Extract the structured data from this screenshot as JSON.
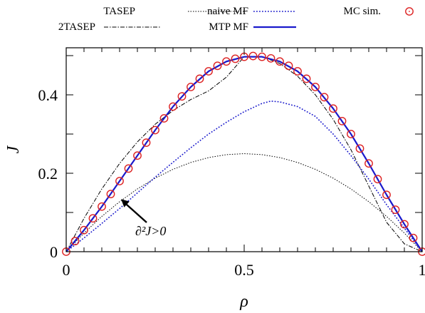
{
  "chart_data": {
    "type": "line",
    "xlabel": "ρ",
    "ylabel": "J",
    "xlim": [
      0,
      1
    ],
    "ylim": [
      0,
      0.52
    ],
    "xticks": [
      {
        "value": 0,
        "label": "0"
      },
      {
        "value": 0.5,
        "label": "0.5"
      },
      {
        "value": 1,
        "label": "1"
      }
    ],
    "yticks": [
      {
        "value": 0,
        "label": "0"
      },
      {
        "value": 0.2,
        "label": "0.2"
      },
      {
        "value": 0.4,
        "label": "0.4"
      }
    ],
    "grid": false,
    "legend_position": "top (outside plot)",
    "annotation": {
      "text": "∂²J>0",
      "x": 0.15,
      "y": 0.145
    },
    "series": [
      {
        "name": "TASEP",
        "style": "dotted",
        "color": "#000000",
        "x": [
          0,
          0.05,
          0.1,
          0.15,
          0.2,
          0.25,
          0.3,
          0.35,
          0.4,
          0.45,
          0.5,
          0.55,
          0.6,
          0.65,
          0.7,
          0.75,
          0.8,
          0.85,
          0.9,
          0.95,
          1
        ],
        "y": [
          0,
          0.0475,
          0.09,
          0.1275,
          0.16,
          0.1875,
          0.21,
          0.2275,
          0.24,
          0.2475,
          0.25,
          0.2475,
          0.24,
          0.2275,
          0.21,
          0.1875,
          0.16,
          0.1275,
          0.09,
          0.0475,
          0
        ]
      },
      {
        "name": "2TASEP",
        "style": "dash-dot",
        "color": "#000000",
        "x": [
          0,
          0.05,
          0.1,
          0.15,
          0.2,
          0.25,
          0.3,
          0.35,
          0.4,
          0.45,
          0.5,
          0.55,
          0.6,
          0.65,
          0.7,
          0.75,
          0.8,
          0.85,
          0.9,
          0.95,
          1
        ],
        "y": [
          0,
          0.085,
          0.16,
          0.225,
          0.28,
          0.325,
          0.36,
          0.388,
          0.41,
          0.445,
          0.497,
          0.4975,
          0.48,
          0.4475,
          0.4,
          0.3375,
          0.26,
          0.1675,
          0.075,
          0.02,
          0
        ]
      },
      {
        "name": "naive MF",
        "style": "dotted",
        "color": "#1a1acc",
        "x": [
          0,
          0.05,
          0.1,
          0.15,
          0.2,
          0.25,
          0.3,
          0.35,
          0.4,
          0.45,
          0.5,
          0.55,
          0.575,
          0.6,
          0.65,
          0.7,
          0.75,
          0.8,
          0.85,
          0.9,
          0.95,
          1
        ],
        "y": [
          0,
          0.035,
          0.072,
          0.11,
          0.15,
          0.19,
          0.228,
          0.265,
          0.3,
          0.33,
          0.357,
          0.378,
          0.384,
          0.382,
          0.37,
          0.345,
          0.3,
          0.245,
          0.185,
          0.12,
          0.06,
          0
        ]
      },
      {
        "name": "MTP MF",
        "style": "solid",
        "color": "#1a1acc",
        "x": [
          0,
          0.05,
          0.1,
          0.15,
          0.2,
          0.25,
          0.3,
          0.35,
          0.4,
          0.45,
          0.5,
          0.55,
          0.6,
          0.65,
          0.7,
          0.75,
          0.8,
          0.85,
          0.9,
          0.95,
          1
        ],
        "y": [
          0,
          0.055,
          0.115,
          0.18,
          0.245,
          0.31,
          0.37,
          0.42,
          0.46,
          0.485,
          0.497,
          0.497,
          0.485,
          0.46,
          0.42,
          0.365,
          0.3,
          0.225,
          0.145,
          0.07,
          0
        ]
      },
      {
        "name": "MC sim.",
        "style": "circles",
        "color": "#dd2222",
        "x": [
          0,
          0.025,
          0.05,
          0.075,
          0.1,
          0.125,
          0.15,
          0.175,
          0.2,
          0.225,
          0.25,
          0.275,
          0.3,
          0.325,
          0.35,
          0.375,
          0.4,
          0.425,
          0.45,
          0.475,
          0.5,
          0.525,
          0.55,
          0.575,
          0.6,
          0.625,
          0.65,
          0.675,
          0.7,
          0.725,
          0.75,
          0.775,
          0.8,
          0.825,
          0.85,
          0.875,
          0.9,
          0.925,
          0.95,
          0.975,
          1
        ],
        "y": [
          0,
          0.027,
          0.055,
          0.085,
          0.115,
          0.147,
          0.18,
          0.212,
          0.245,
          0.278,
          0.31,
          0.34,
          0.37,
          0.396,
          0.42,
          0.441,
          0.46,
          0.474,
          0.485,
          0.492,
          0.497,
          0.499,
          0.497,
          0.493,
          0.485,
          0.474,
          0.46,
          0.441,
          0.42,
          0.394,
          0.365,
          0.333,
          0.3,
          0.263,
          0.225,
          0.185,
          0.145,
          0.107,
          0.07,
          0.035,
          0
        ]
      }
    ]
  }
}
